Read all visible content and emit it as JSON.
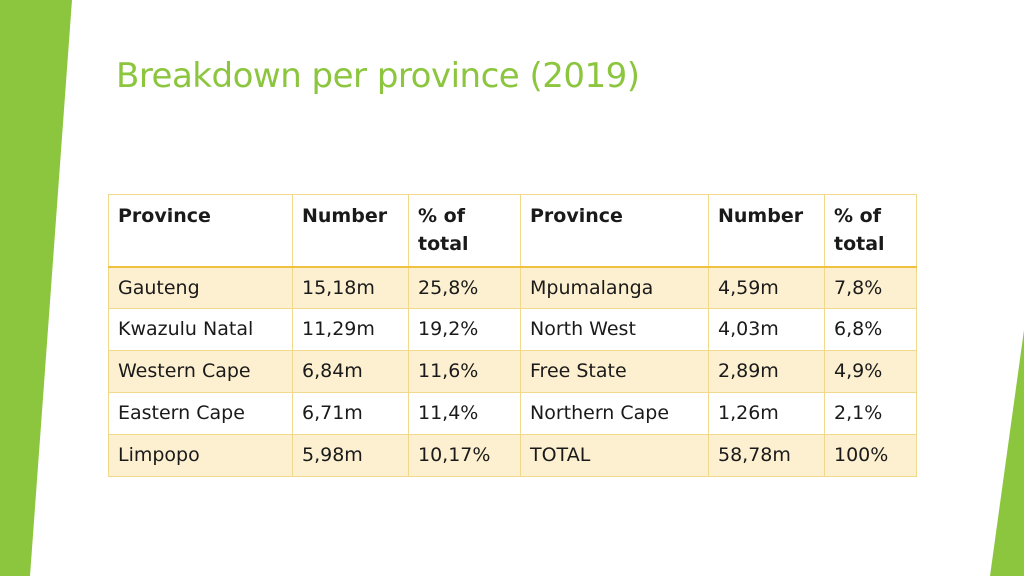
{
  "slide": {
    "title": "Breakdown per province (2019)",
    "accent_color": "#8cc63f"
  },
  "table": {
    "headers": [
      "Province",
      "Number",
      "% of total",
      "Province",
      "Number",
      "% of total"
    ],
    "rows": [
      [
        "Gauteng",
        "15,18m",
        "25,8%",
        "Mpumalanga",
        "4,59m",
        "7,8%"
      ],
      [
        "Kwazulu Natal",
        "11,29m",
        "19,2%",
        "North West",
        "4,03m",
        "6,8%"
      ],
      [
        "Western Cape",
        "6,84m",
        "11,6%",
        "Free State",
        "2,89m",
        "4,9%"
      ],
      [
        "Eastern Cape",
        "6,71m",
        "11,4%",
        "Northern Cape",
        "1,26m",
        "2,1%"
      ],
      [
        "Limpopo",
        "5,98m",
        "10,17%",
        "TOTAL",
        "58,78m",
        "100%"
      ]
    ]
  }
}
